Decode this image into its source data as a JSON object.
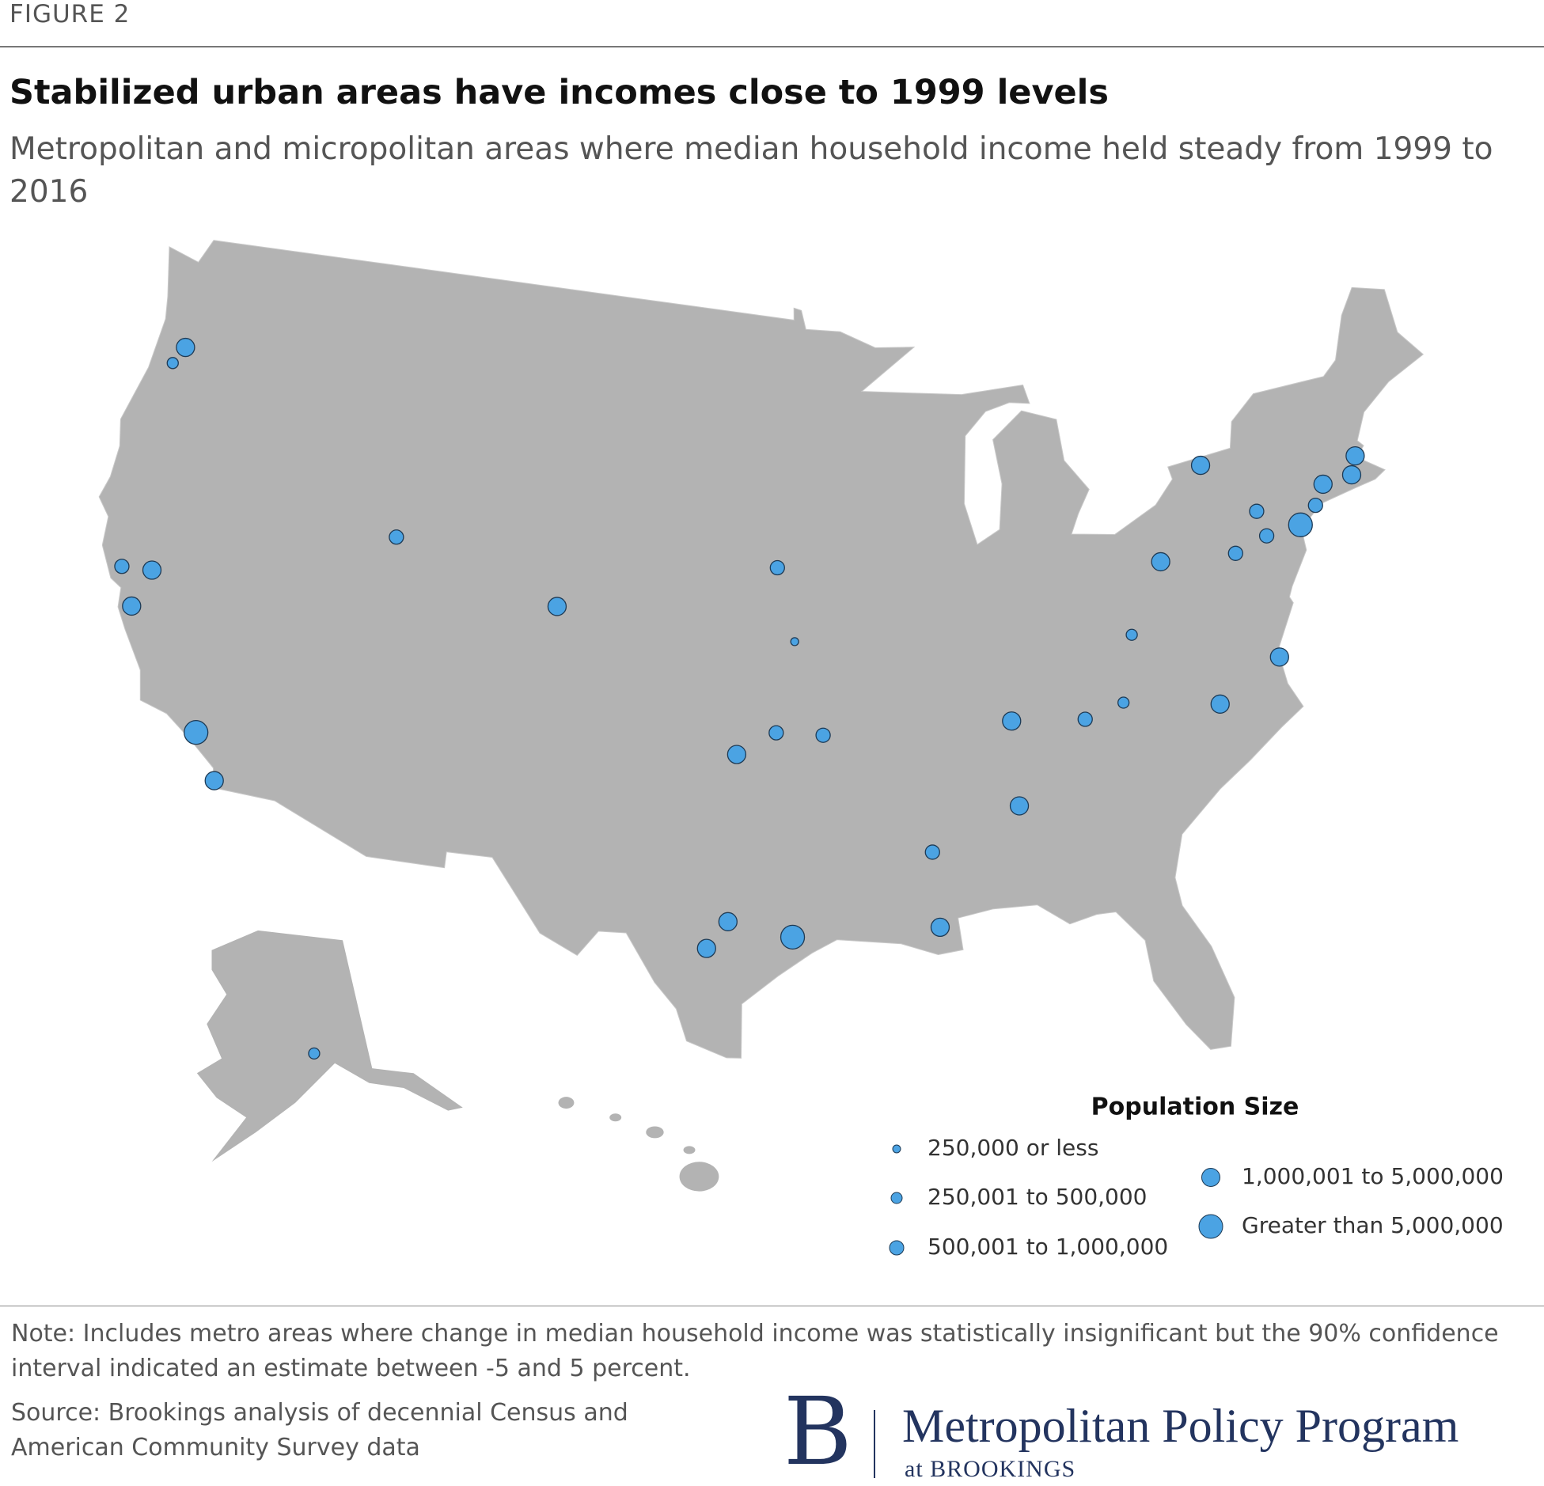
{
  "header": {
    "figure": "FIGURE 2",
    "title": "Stabilized urban areas have incomes close to 1999 levels",
    "subtitle": "Metropolitan and micropolitan areas where median household income held steady from 1999 to 2016"
  },
  "chart_data": {
    "type": "map",
    "legend": {
      "title": "Population Size",
      "items": [
        {
          "label": "250,000 or less",
          "points": [
            [
              -95.24,
              38.97
            ]
          ]
        },
        {
          "label": "250,001 to 500,000",
          "points": [
            [
              -123.03,
              44.94
            ],
            [
              -81.63,
              38.35
            ],
            [
              -82.35,
              36.31
            ],
            [
              -149.9,
              61.22
            ]
          ]
        },
        {
          "label": "500,001 to 1,000,000",
          "points": [
            [
              -122.7,
              38.44
            ],
            [
              -111.97,
              41.22
            ],
            [
              -95.94,
              41.26
            ],
            [
              -95.99,
              36.15
            ],
            [
              -94.16,
              36.06
            ],
            [
              -90.18,
              32.3
            ],
            [
              -83.92,
              35.96
            ],
            [
              -76.88,
              40.27
            ],
            [
              -75.66,
              41.41
            ],
            [
              -75.47,
              40.6
            ],
            [
              -73.2,
              41.18
            ]
          ]
        },
        {
          "label": "1,000,001 to 5,000,000",
          "points": [
            [
              -122.68,
              45.52
            ],
            [
              -121.49,
              38.58
            ],
            [
              -121.89,
              37.34
            ],
            [
              -117.16,
              32.72
            ],
            [
              -104.99,
              39.74
            ],
            [
              -97.52,
              35.47
            ],
            [
              -97.74,
              30.27
            ],
            [
              -98.49,
              29.42
            ],
            [
              -90.07,
              29.95
            ],
            [
              -86.8,
              33.52
            ],
            [
              -86.78,
              36.16
            ],
            [
              -78.64,
              35.78
            ],
            [
              -76.0,
              36.85
            ],
            [
              -79.99,
              40.44
            ],
            [
              -72.68,
              41.76
            ],
            [
              -71.41,
              41.82
            ],
            [
              -71.06,
              42.36
            ],
            [
              -77.6,
              43.16
            ]
          ]
        },
        {
          "label": "Greater than 5,000,000",
          "points": [
            [
              -118.24,
              34.05
            ],
            [
              -95.4,
              29.8
            ],
            [
              -74.0,
              40.7
            ]
          ]
        }
      ]
    }
  },
  "footer": {
    "note": "Note: Includes metro areas where change in median household income was statistically insignificant but the 90% confidence interval indicated an estimate between -5 and 5 percent.",
    "source": "Source: Brookings analysis of decennial Census and American Community Survey data",
    "logo_letter": "B",
    "logo_name": "Metropolitan Policy Program",
    "logo_sub": "at BROOKINGS"
  }
}
